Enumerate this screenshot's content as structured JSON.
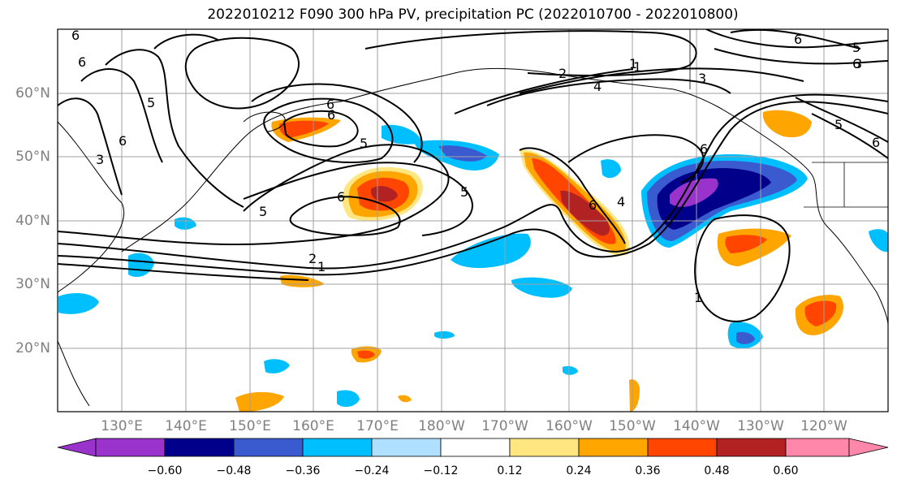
{
  "title": "2022010212 F090 300 hPa PV, precipitation PC (2022010700 - 2022010800)",
  "lat_labels": [
    "60°N",
    "50°N",
    "40°N",
    "30°N",
    "20°N"
  ],
  "lon_labels": [
    "130°E",
    "140°E",
    "150°E",
    "160°E",
    "170°E",
    "180°W",
    "170°W",
    "160°W",
    "150°W",
    "140°W",
    "130°W",
    "120°W"
  ],
  "colorbar": {
    "ticks": [
      "−0.60",
      "−0.48",
      "−0.36",
      "−0.24",
      "−0.12",
      "0.12",
      "0.24",
      "0.36",
      "0.48",
      "0.60"
    ],
    "colors": [
      "#9933cc",
      "#00008b",
      "#3a5bcf",
      "#00bfff",
      "#b0e0ff",
      "#ffffff",
      "#ffe680",
      "#ffa500",
      "#ff4500",
      "#b22222",
      "#ff88aa"
    ]
  },
  "contour_labels": [
    "6",
    "6",
    "5",
    "6",
    "3",
    "1",
    "2",
    "4",
    "3",
    "5",
    "6",
    "6",
    "5",
    "6",
    "5",
    "6",
    "4",
    "2",
    "1",
    "6",
    "5",
    "6",
    "1",
    "5",
    "6",
    "6",
    "3",
    "1"
  ]
}
